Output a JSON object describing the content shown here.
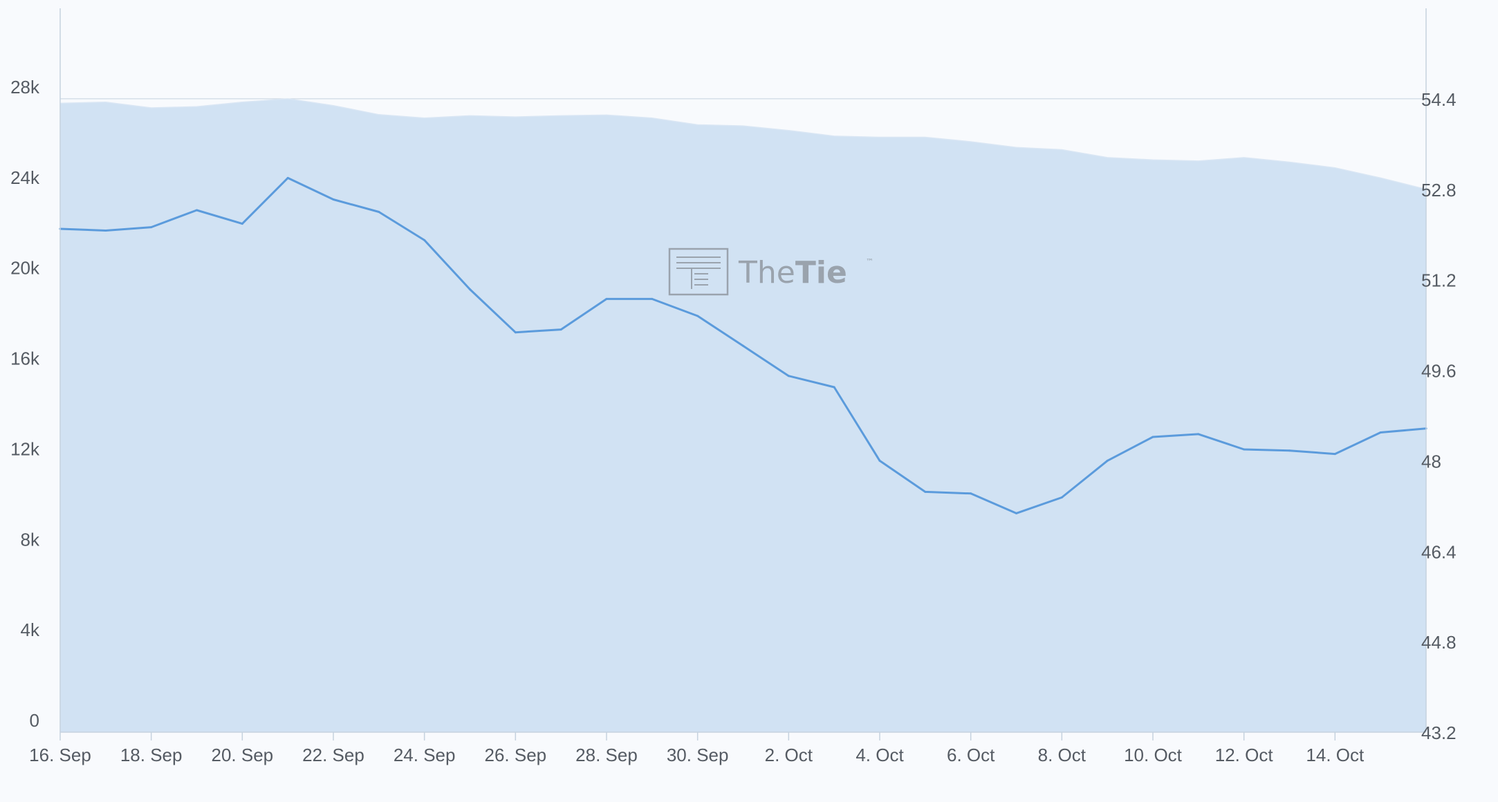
{
  "watermark": {
    "text_thin": "The",
    "text_bold": "Tie",
    "tm": "™"
  },
  "chart_data": {
    "type": "area",
    "x": [
      "16. Sep",
      "17. Sep",
      "18. Sep",
      "19. Sep",
      "20. Sep",
      "21. Sep",
      "22. Sep",
      "23. Sep",
      "24. Sep",
      "25. Sep",
      "26. Sep",
      "27. Sep",
      "28. Sep",
      "29. Sep",
      "30. Sep",
      "1. Oct",
      "2. Oct",
      "3. Oct",
      "4. Oct",
      "5. Oct",
      "6. Oct",
      "7. Oct",
      "8. Oct",
      "9. Oct",
      "10. Oct",
      "11. Oct",
      "12. Oct",
      "13. Oct",
      "14. Oct",
      "15. Oct",
      "16. Oct"
    ],
    "x_tick_labels": [
      "16. Sep",
      "18. Sep",
      "20. Sep",
      "22. Sep",
      "24. Sep",
      "26. Sep",
      "28. Sep",
      "30. Sep",
      "2. Oct",
      "4. Oct",
      "6. Oct",
      "8. Oct",
      "10. Oct",
      "12. Oct",
      "14. Oct"
    ],
    "left_axis": {
      "ticks": [
        "0",
        "4k",
        "8k",
        "12k",
        "16k",
        "20k",
        "24k",
        "28k"
      ],
      "range": [
        0,
        32000
      ]
    },
    "right_axis": {
      "ticks": [
        "43.2",
        "44.8",
        "46.4",
        "48",
        "49.6",
        "51.2",
        "52.8",
        "54.4"
      ],
      "range": [
        43.2,
        56.0
      ]
    },
    "series": [
      {
        "type": "area",
        "axis": "left",
        "color": "#d1e2f3",
        "values": [
          27800,
          27850,
          27600,
          27650,
          27850,
          28000,
          27700,
          27300,
          27150,
          27250,
          27200,
          27250,
          27280,
          27150,
          26850,
          26800,
          26600,
          26350,
          26300,
          26300,
          26100,
          25850,
          25750,
          25400,
          25300,
          25250,
          25400,
          25200,
          24950,
          24500,
          24000
        ]
      },
      {
        "type": "line",
        "axis": "right",
        "color": "#5b9bdc",
        "values": [
          52.1,
          52.07,
          52.13,
          52.43,
          52.19,
          53.0,
          52.62,
          52.4,
          51.9,
          51.03,
          50.27,
          50.32,
          50.86,
          50.86,
          50.56,
          50.03,
          49.5,
          49.3,
          48.0,
          47.45,
          47.42,
          47.07,
          47.35,
          48.0,
          48.42,
          48.47,
          48.2,
          48.18,
          48.12,
          48.5,
          48.57
        ]
      }
    ],
    "grid": true,
    "legend": "none"
  }
}
